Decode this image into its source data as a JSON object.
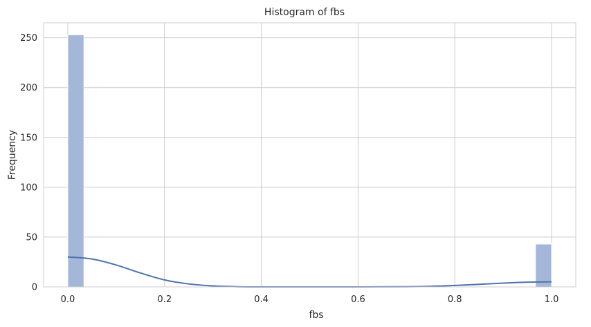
{
  "chart_data": {
    "type": "bar",
    "title": "Histogram of fbs",
    "xlabel": "fbs",
    "ylabel": "Frequency",
    "xlim": [
      -0.05,
      1.05
    ],
    "ylim": [
      0,
      265
    ],
    "xticks": [
      0.0,
      0.2,
      0.4,
      0.6,
      0.8,
      1.0
    ],
    "xtick_labels": [
      "0.0",
      "0.2",
      "0.4",
      "0.6",
      "0.8",
      "1.0"
    ],
    "yticks": [
      0,
      50,
      100,
      150,
      200,
      250
    ],
    "ytick_labels": [
      "0",
      "50",
      "100",
      "150",
      "200",
      "250"
    ],
    "grid": true,
    "bin_width": 0.03333,
    "bars": [
      {
        "x_start": 0.0,
        "x_end": 0.03333,
        "count": 253
      },
      {
        "x_start": 0.96667,
        "x_end": 1.0,
        "count": 43
      }
    ],
    "kde_curve": {
      "x": [
        0.0,
        0.05,
        0.1,
        0.15,
        0.2,
        0.25,
        0.3,
        0.35,
        0.4,
        0.5,
        0.6,
        0.7,
        0.75,
        0.8,
        0.85,
        0.9,
        0.95,
        1.0
      ],
      "y": [
        30,
        28,
        22,
        14,
        7,
        3,
        1,
        0.2,
        0,
        0,
        0,
        0.2,
        0.6,
        1.5,
        2.6,
        3.8,
        4.8,
        5.1
      ]
    },
    "colors": {
      "bar_fill": "#a5b7d8",
      "bar_stroke": "#ffffff",
      "kde_line": "#4c72b0",
      "grid": "#cccccc",
      "frame": "#cccccc"
    }
  }
}
